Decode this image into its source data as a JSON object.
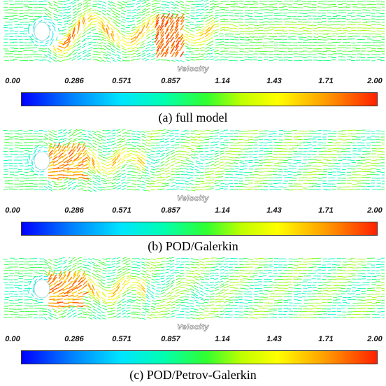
{
  "colorbar": {
    "label": "Velocity",
    "ticks": [
      "0.00",
      "0.286",
      "0.571",
      "0.857",
      "1.14",
      "1.43",
      "1.71",
      "2.00"
    ],
    "min": 0.0,
    "max": 2.0,
    "colors": [
      "#0000ff",
      "#0080ff",
      "#00e5ff",
      "#00ffb0",
      "#30ff30",
      "#c0ff00",
      "#ffff00",
      "#ff9900",
      "#ff2000"
    ]
  },
  "panels": [
    {
      "caption": "(a) full model",
      "wake": "full"
    },
    {
      "caption": "(b) POD/Galerkin",
      "wake": "galerkin"
    },
    {
      "caption": "(c) POD/Petrov-Galerkin",
      "wake": "petrov"
    }
  ]
}
